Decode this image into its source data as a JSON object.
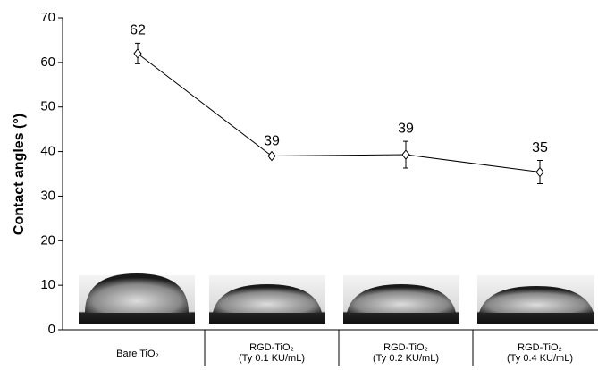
{
  "chart_data": {
    "type": "line",
    "y_label": "Contact angles (°)",
    "categories": [
      "Bare TiO₂",
      "RGD-TiO₂\n(Ty 0.1 KU/mL)",
      "RGD-TiO₂\n(Ty 0.2 KU/mL)",
      "RGD-TiO₂\n(Ty 0.4 KU/mL)"
    ],
    "values": [
      62,
      39,
      39.3,
      35.4
    ],
    "value_labels": [
      "62",
      "39",
      "39",
      "35"
    ],
    "errors": [
      2.3,
      0.5,
      3,
      2.6
    ],
    "color": "#000000",
    "ylim": [
      0,
      70
    ],
    "yticks": [
      0,
      10,
      20,
      30,
      40,
      50,
      60,
      70
    ],
    "grid": false
  }
}
